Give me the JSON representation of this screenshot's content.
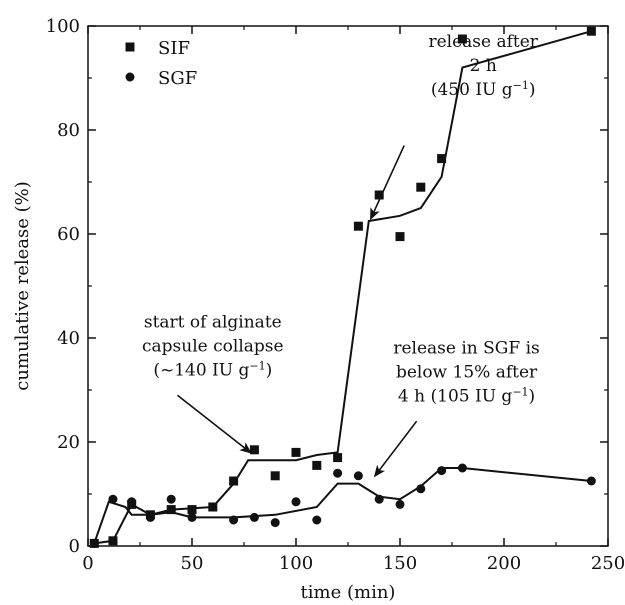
{
  "chart_data": {
    "type": "scatter",
    "xlabel": "time (min)",
    "ylabel": "cumulative release (%)",
    "xlim": [
      0,
      250
    ],
    "ylim": [
      0,
      100
    ],
    "x_ticks": [
      0,
      50,
      100,
      150,
      200,
      250
    ],
    "y_ticks": [
      0,
      20,
      40,
      60,
      80,
      100
    ],
    "grid": false,
    "legend_position": "top-left",
    "series": [
      {
        "name": "SIF",
        "marker": "square",
        "color": "#111111",
        "points": [
          [
            3,
            0.5
          ],
          [
            12,
            1
          ],
          [
            21,
            8
          ],
          [
            30,
            6
          ],
          [
            40,
            7
          ],
          [
            50,
            7
          ],
          [
            60,
            7.5
          ],
          [
            70,
            12.5
          ],
          [
            80,
            18.5
          ],
          [
            90,
            13.5
          ],
          [
            100,
            18
          ],
          [
            110,
            15.5
          ],
          [
            120,
            17
          ],
          [
            130,
            61.5
          ],
          [
            140,
            67.5
          ],
          [
            150,
            59.5
          ],
          [
            160,
            69
          ],
          [
            170,
            74.5
          ],
          [
            180,
            97.5
          ],
          [
            242,
            99
          ]
        ],
        "fit": [
          [
            3,
            0.5
          ],
          [
            12,
            1
          ],
          [
            21,
            8
          ],
          [
            30,
            6
          ],
          [
            40,
            7
          ],
          [
            60,
            7.5
          ],
          [
            70,
            12
          ],
          [
            77,
            16.5
          ],
          [
            100,
            16.5
          ],
          [
            110,
            17.5
          ],
          [
            120,
            18
          ],
          [
            135,
            62.5
          ],
          [
            150,
            63.5
          ],
          [
            160,
            65
          ],
          [
            170,
            71
          ],
          [
            180,
            92
          ],
          [
            242,
            99
          ]
        ]
      },
      {
        "name": "SGF",
        "marker": "circle",
        "color": "#111111",
        "points": [
          [
            3,
            0.5
          ],
          [
            12,
            9
          ],
          [
            21,
            8.5
          ],
          [
            30,
            5.5
          ],
          [
            40,
            9
          ],
          [
            50,
            5.5
          ],
          [
            70,
            5
          ],
          [
            80,
            5.5
          ],
          [
            90,
            4.5
          ],
          [
            100,
            8.5
          ],
          [
            110,
            5
          ],
          [
            120,
            14
          ],
          [
            130,
            13.5
          ],
          [
            140,
            9
          ],
          [
            150,
            8
          ],
          [
            160,
            11
          ],
          [
            170,
            14.5
          ],
          [
            180,
            15
          ],
          [
            242,
            12.5
          ]
        ],
        "fit": [
          [
            3,
            0.5
          ],
          [
            10,
            8.5
          ],
          [
            18,
            7.5
          ],
          [
            21,
            6
          ],
          [
            30,
            6
          ],
          [
            40,
            6.5
          ],
          [
            50,
            5.5
          ],
          [
            70,
            5.5
          ],
          [
            90,
            6
          ],
          [
            110,
            7.5
          ],
          [
            120,
            12
          ],
          [
            130,
            12
          ],
          [
            140,
            9.5
          ],
          [
            150,
            9
          ],
          [
            160,
            11.5
          ],
          [
            170,
            15
          ],
          [
            180,
            15
          ],
          [
            242,
            12.5
          ]
        ]
      }
    ],
    "annotations": [
      {
        "lines": [
          [
            {
              "t": "release after"
            }
          ],
          [
            {
              "t": "2 h"
            }
          ],
          [
            {
              "t": "(450 IU g"
            },
            {
              "t": "−1",
              "sup": true
            },
            {
              "t": ")"
            }
          ]
        ],
        "anchor": [
          190,
          96
        ],
        "arrow_from": [
          152,
          77
        ],
        "arrow_to": [
          136,
          63
        ]
      },
      {
        "lines": [
          [
            {
              "t": "start of alginate"
            }
          ],
          [
            {
              "t": "capsule collapse"
            }
          ],
          [
            {
              "t": "(~140 IU g"
            },
            {
              "t": "−1",
              "sup": true
            },
            {
              "t": ")"
            }
          ]
        ],
        "anchor": [
          60,
          42
        ],
        "arrow_from": [
          43,
          29
        ],
        "arrow_to": [
          78,
          18
        ]
      },
      {
        "lines": [
          [
            {
              "t": "release in SGF is"
            }
          ],
          [
            {
              "t": "below 15% after"
            }
          ],
          [
            {
              "t": "4 h (105 IU g"
            },
            {
              "t": "−1",
              "sup": true
            },
            {
              "t": ")"
            }
          ]
        ],
        "anchor": [
          182,
          37
        ],
        "arrow_from": [
          158,
          24
        ],
        "arrow_to": [
          138,
          13.5
        ]
      }
    ]
  }
}
